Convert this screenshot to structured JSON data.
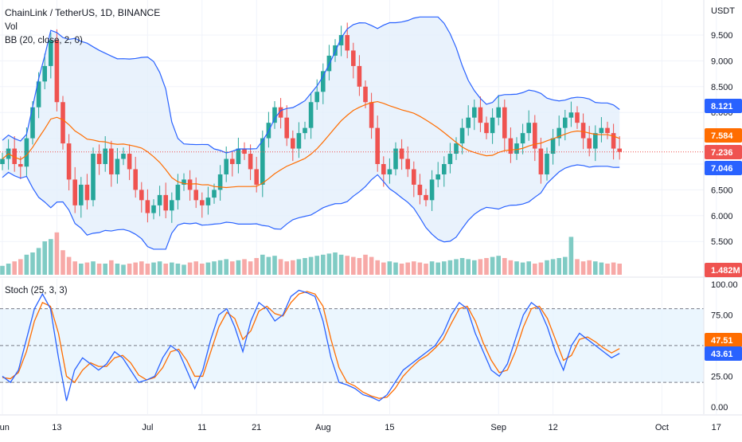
{
  "header": {
    "symbol_line": "ChainLink / TetherUS, 1D, BINANCE",
    "vol_label": "Vol",
    "bb_label": "BB (20, close, 2, 0)",
    "stoch_label": "Stoch (25, 3, 3)",
    "currency": "USDT"
  },
  "colors": {
    "up": "#26a69a",
    "down": "#ef5350",
    "vol_up": "#80cbc4",
    "vol_down": "#f7a9a7",
    "bb_band": "#2962ff",
    "bb_basis": "#ff6d00",
    "bb_fill": "#e3effb",
    "stoch_k": "#2962ff",
    "stoch_d": "#ff6d00",
    "stoch_fill": "#e3f2fd",
    "badge_upper": "#2962ff",
    "badge_mid": "#ff6d00",
    "badge_price": "#ef5350",
    "badge_lower": "#2962ff",
    "badge_vol": "#ef5350"
  },
  "price_axis": {
    "ticks": [
      "9.500",
      "9.000",
      "8.500",
      "8.000",
      "7.500",
      "7.000",
      "6.500",
      "6.000",
      "5.500"
    ],
    "tick_values": [
      9.5,
      9.0,
      8.5,
      8.0,
      7.5,
      7.0,
      6.5,
      6.0,
      5.5
    ]
  },
  "stoch_axis": {
    "ticks": [
      "100.00",
      "75.00",
      "50.00",
      "25.00",
      "0.00"
    ],
    "tick_values": [
      100,
      75,
      50,
      25,
      0
    ],
    "upper_band": 80,
    "lower_band": 20
  },
  "time_axis": {
    "labels": [
      "Jun",
      "13",
      "Jul",
      "11",
      "21",
      "Aug",
      "15",
      "Sep",
      "12",
      "Oct",
      "17"
    ],
    "label_index": [
      0,
      9,
      24,
      33,
      42,
      53,
      64,
      82,
      91,
      109,
      118
    ]
  },
  "badges": {
    "upper": {
      "label": "8.121",
      "value": 8.121
    },
    "basis": {
      "label": "7.584",
      "value": 7.584
    },
    "price": {
      "label": "7.236",
      "value": 7.236
    },
    "lower": {
      "label": "7.046",
      "value": 7.046
    },
    "volume": {
      "label": "1.482M"
    },
    "stoch_d": {
      "label": "47.51",
      "value": 47.51
    },
    "stoch_k": {
      "label": "43.61",
      "value": 43.61
    }
  },
  "chart_data": {
    "type": "candlestick",
    "y_range": [
      5.3,
      10.0
    ],
    "x_labels": [
      "Jun",
      "13",
      "Jul",
      "11",
      "21",
      "Aug",
      "15",
      "Sep",
      "12",
      "Oct",
      "17"
    ],
    "closes": [
      7.1,
      7.3,
      7.0,
      6.95,
      7.5,
      8.1,
      8.6,
      8.9,
      9.4,
      8.2,
      7.4,
      6.7,
      6.2,
      6.6,
      6.3,
      7.2,
      7.0,
      7.3,
      6.8,
      7.1,
      7.2,
      6.9,
      6.5,
      6.3,
      6.05,
      6.2,
      6.4,
      6.1,
      6.3,
      6.6,
      6.7,
      6.5,
      6.3,
      6.2,
      6.35,
      6.5,
      6.8,
      7.1,
      7.0,
      7.3,
      7.2,
      6.9,
      6.6,
      7.5,
      7.8,
      8.1,
      7.9,
      7.5,
      7.3,
      7.6,
      7.7,
      8.2,
      8.4,
      8.8,
      9.1,
      9.3,
      9.5,
      9.2,
      8.9,
      8.5,
      8.2,
      7.7,
      7.0,
      6.8,
      6.9,
      7.3,
      7.1,
      6.9,
      6.6,
      6.4,
      6.3,
      6.7,
      6.8,
      7.0,
      7.2,
      7.4,
      7.7,
      7.9,
      8.1,
      7.8,
      7.6,
      7.9,
      8.1,
      7.5,
      7.2,
      7.4,
      7.6,
      7.8,
      7.3,
      6.8,
      7.2,
      7.5,
      7.7,
      7.9,
      8.0,
      7.8,
      7.5,
      7.3,
      7.6,
      7.7,
      7.6,
      7.3,
      7.236
    ],
    "volumes": [
      0.4,
      0.5,
      0.6,
      0.7,
      0.9,
      1.0,
      1.2,
      1.5,
      1.6,
      1.9,
      1.1,
      0.8,
      0.6,
      0.5,
      0.55,
      0.6,
      0.5,
      0.5,
      0.65,
      0.5,
      0.45,
      0.5,
      0.55,
      0.6,
      0.5,
      0.55,
      0.6,
      0.5,
      0.55,
      0.5,
      0.45,
      0.55,
      0.6,
      0.5,
      0.55,
      0.6,
      0.65,
      0.7,
      0.6,
      0.65,
      0.7,
      0.6,
      0.75,
      0.9,
      0.8,
      0.85,
      0.7,
      0.6,
      0.65,
      0.7,
      0.75,
      0.8,
      0.85,
      0.9,
      0.95,
      1.0,
      0.9,
      0.85,
      0.8,
      0.75,
      0.9,
      0.8,
      0.65,
      0.55,
      0.6,
      0.55,
      0.5,
      0.55,
      0.6,
      0.55,
      0.5,
      0.6,
      0.55,
      0.6,
      0.65,
      0.7,
      0.75,
      0.7,
      0.65,
      0.7,
      0.75,
      0.8,
      0.85,
      0.75,
      0.65,
      0.6,
      0.55,
      0.6,
      0.5,
      0.55,
      0.65,
      0.7,
      0.75,
      0.8,
      1.7,
      0.7,
      0.6,
      0.65,
      0.6,
      0.55,
      0.5,
      0.55,
      0.5
    ],
    "stoch_k": [
      25,
      20,
      30,
      55,
      80,
      92,
      80,
      40,
      5,
      30,
      40,
      35,
      30,
      35,
      45,
      40,
      30,
      20,
      22,
      25,
      40,
      50,
      45,
      30,
      15,
      30,
      55,
      75,
      80,
      65,
      45,
      70,
      85,
      80,
      70,
      75,
      90,
      95,
      93,
      90,
      70,
      40,
      20,
      18,
      15,
      10,
      8,
      5,
      10,
      20,
      30,
      35,
      40,
      45,
      50,
      60,
      75,
      85,
      80,
      60,
      45,
      30,
      25,
      35,
      55,
      75,
      85,
      80,
      65,
      45,
      30,
      50,
      60,
      55,
      50,
      45,
      40,
      43.61
    ],
    "stoch_d": [
      24,
      23,
      28,
      45,
      70,
      85,
      82,
      60,
      25,
      20,
      30,
      36,
      33,
      33,
      40,
      42,
      36,
      26,
      22,
      24,
      32,
      45,
      47,
      38,
      25,
      25,
      45,
      65,
      77,
      72,
      55,
      62,
      78,
      82,
      76,
      74,
      85,
      92,
      94,
      92,
      82,
      55,
      32,
      20,
      17,
      12,
      9,
      7,
      8,
      15,
      25,
      32,
      38,
      42,
      48,
      55,
      68,
      80,
      82,
      70,
      52,
      38,
      28,
      30,
      45,
      65,
      80,
      82,
      72,
      55,
      38,
      42,
      55,
      57,
      53,
      48,
      44,
      47.51
    ]
  }
}
